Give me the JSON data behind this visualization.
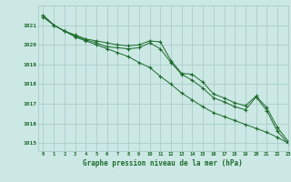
{
  "title": "Graphe pression niveau de la mer (hPa)",
  "background_color": "#cce8e4",
  "grid_color": "#aaccca",
  "line_color": "#1a6b2a",
  "xlim": [
    -0.5,
    23
  ],
  "ylim": [
    1014.6,
    1022.0
  ],
  "yticks": [
    1015,
    1016,
    1017,
    1018,
    1019,
    1020,
    1021
  ],
  "xticks": [
    0,
    1,
    2,
    3,
    4,
    5,
    6,
    7,
    8,
    9,
    10,
    11,
    12,
    13,
    14,
    15,
    16,
    17,
    18,
    19,
    20,
    21,
    22,
    23
  ],
  "series1": [
    1021.5,
    1021.0,
    1020.7,
    1020.5,
    1020.3,
    1020.2,
    1020.1,
    1020.0,
    1019.95,
    1020.0,
    1020.2,
    1020.15,
    1019.2,
    1018.55,
    1018.5,
    1018.1,
    1017.5,
    1017.3,
    1017.05,
    1016.9,
    1017.4,
    1016.8,
    1015.8,
    1015.1
  ],
  "series2": [
    1021.5,
    1021.0,
    1020.7,
    1020.45,
    1020.25,
    1020.1,
    1019.9,
    1019.85,
    1019.8,
    1019.85,
    1020.1,
    1019.8,
    1019.1,
    1018.5,
    1018.2,
    1017.8,
    1017.3,
    1017.1,
    1016.85,
    1016.7,
    1017.35,
    1016.65,
    1015.6,
    1015.0
  ],
  "series3": [
    1021.4,
    1021.0,
    1020.7,
    1020.4,
    1020.2,
    1020.0,
    1019.8,
    1019.6,
    1019.4,
    1019.1,
    1018.85,
    1018.4,
    1018.0,
    1017.55,
    1017.2,
    1016.85,
    1016.55,
    1016.35,
    1016.15,
    1015.95,
    1015.75,
    1015.55,
    1015.3,
    1015.0
  ]
}
